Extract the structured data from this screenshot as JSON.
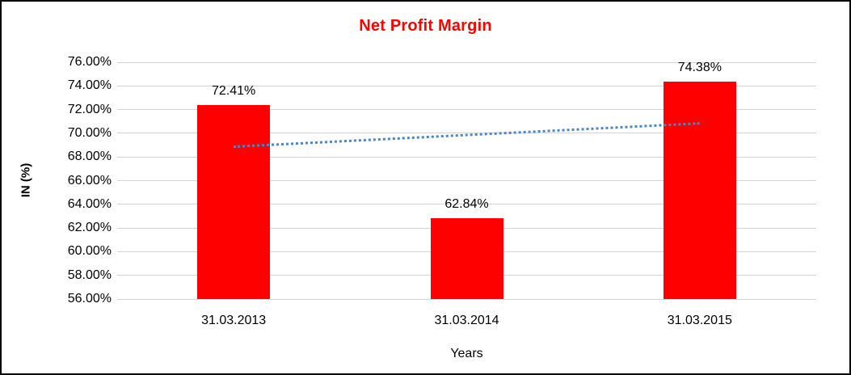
{
  "frame": {
    "background": "#ffffff",
    "border_color": "#000000"
  },
  "chart_data": {
    "type": "bar",
    "title": "Net Profit Margin",
    "title_color": "#ff0000",
    "categories": [
      "31.03.2013",
      "31.03.2014",
      "31.03.2015"
    ],
    "values": [
      72.41,
      62.84,
      74.38
    ],
    "data_labels": [
      "72.41%",
      "62.84%",
      "74.38%"
    ],
    "bar_color": "#ff0000",
    "xlabel": "Years",
    "ylabel": "IN (%)",
    "ylim": [
      56,
      76
    ],
    "ytick_step": 2,
    "ytick_labels": [
      "76.00%",
      "74.00%",
      "72.00%",
      "70.00%",
      "68.00%",
      "66.00%",
      "64.00%",
      "62.00%",
      "60.00%",
      "58.00%",
      "56.00%"
    ],
    "grid": true,
    "gridline_color": "#d3d3d3",
    "legend": "none",
    "trendline": {
      "type": "linear",
      "style": "dotted",
      "color": "#4a86c8",
      "start_value": 68.89,
      "end_value": 70.86
    }
  }
}
